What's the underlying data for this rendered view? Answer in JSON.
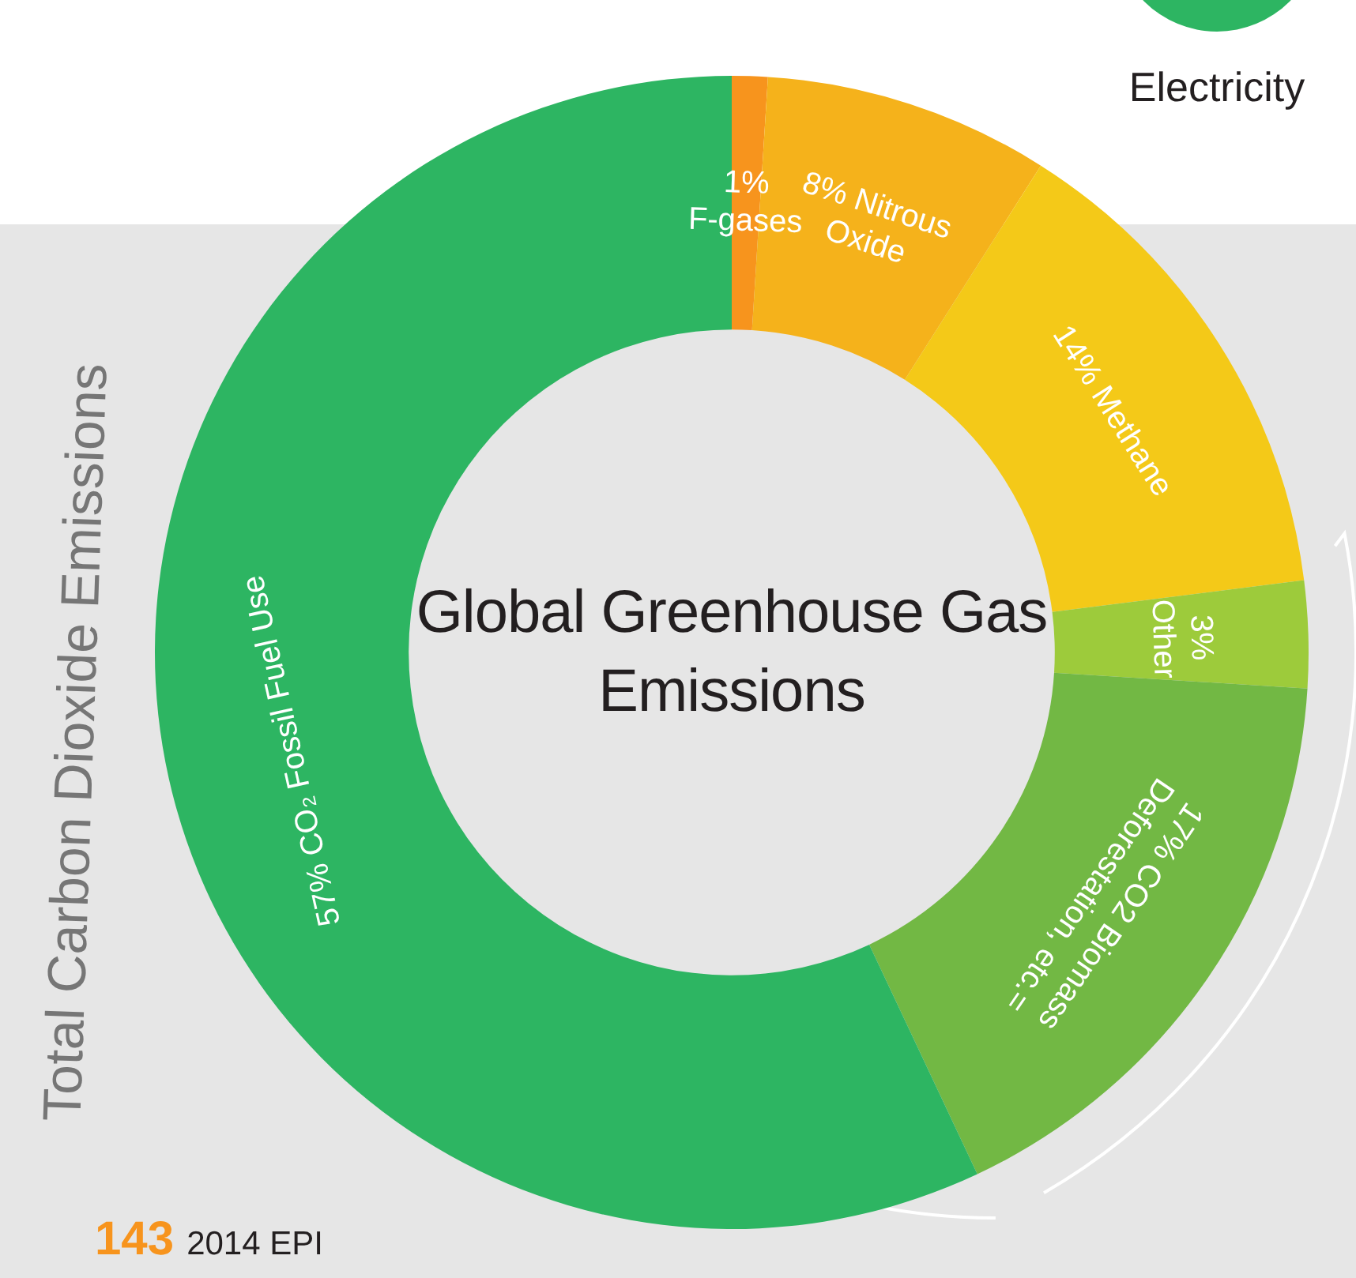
{
  "chart_data": {
    "type": "donut",
    "title": "Global Greenhouse Gas Emissions",
    "categories": [
      "F-gases",
      "Nitrous Oxide",
      "Methane",
      "Other",
      "CO2 Biomass Deforestation, etc.=",
      "CO₂ Fossil Fuel Use"
    ],
    "values": [
      1,
      8,
      14,
      3,
      17,
      57
    ],
    "value_labels": [
      "1%",
      "8%",
      "14%",
      "3%",
      "17%",
      "57%"
    ],
    "colors": [
      "#f7941d",
      "#f5b21b",
      "#f4c918",
      "#9dcb3b",
      "#72b844",
      "#2db562"
    ],
    "legend": false,
    "annotations": [
      "Total Carbon Dioxide Emissions",
      "Electricity",
      "143",
      "2014 EPI"
    ]
  }
}
